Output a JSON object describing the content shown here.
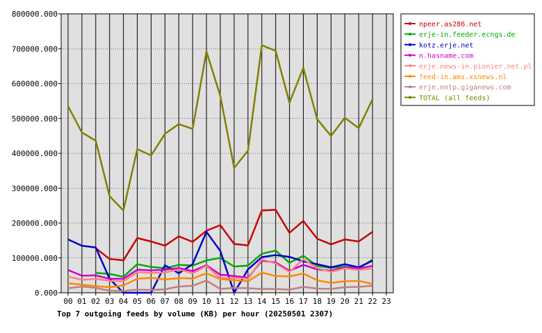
{
  "chart_data": {
    "type": "line",
    "title": "Top 7 outgoing feeds by volume (KB) per hour (20250501 2307)",
    "x_categories": [
      "00",
      "01",
      "02",
      "03",
      "04",
      "05",
      "06",
      "07",
      "08",
      "09",
      "10",
      "11",
      "12",
      "13",
      "14",
      "15",
      "16",
      "17",
      "18",
      "19",
      "20",
      "21",
      "22",
      "23"
    ],
    "ylim": [
      0,
      800000
    ],
    "y_ticks": [
      0,
      100000,
      200000,
      300000,
      400000,
      500000,
      600000,
      700000,
      800000
    ],
    "y_tick_labels": [
      "0.000",
      "100000.000",
      "200000.000",
      "300000.000",
      "400000.000",
      "500000.000",
      "600000.000",
      "700000.000",
      "800000.000"
    ],
    "grid": true,
    "legend_position": "right",
    "series": [
      {
        "name": "npeer.as286.net",
        "color": "#cc0000",
        "values": [
          null,
          null,
          128000,
          97000,
          93000,
          157000,
          147000,
          135000,
          162000,
          146000,
          178000,
          194000,
          140000,
          136000,
          236000,
          238000,
          172000,
          206000,
          155000,
          139000,
          153000,
          147000,
          175000,
          null
        ]
      },
      {
        "name": "erje-in.feeder.ecngs.de",
        "color": "#00aa00",
        "values": [
          null,
          null,
          57000,
          54000,
          46000,
          82000,
          74000,
          70000,
          80000,
          78000,
          93000,
          100000,
          75000,
          78000,
          112000,
          121000,
          86000,
          106000,
          77000,
          71000,
          75000,
          70000,
          95000,
          null
        ]
      },
      {
        "name": "kotz.erje.net",
        "color": "#0000cc",
        "values": [
          153000,
          135000,
          130000,
          40000,
          0,
          0,
          0,
          79000,
          56000,
          82000,
          175000,
          120000,
          0,
          67000,
          102000,
          108000,
          103000,
          90000,
          82000,
          73000,
          82000,
          73000,
          92000,
          null
        ]
      },
      {
        "name": "n.hasname.com",
        "color": "#cc00cc",
        "values": [
          65000,
          49000,
          50000,
          40000,
          40000,
          66000,
          64000,
          66000,
          71000,
          62000,
          79000,
          52000,
          48000,
          43000,
          92000,
          87000,
          63000,
          80000,
          67000,
          63000,
          73000,
          70000,
          77000,
          null
        ]
      },
      {
        "name": "erje.news-in.pionier.net.pl",
        "color": "#ff8080",
        "values": [
          47000,
          37000,
          40000,
          34000,
          33000,
          59000,
          57000,
          58000,
          67000,
          56000,
          77000,
          42000,
          43000,
          40000,
          96000,
          84000,
          60000,
          96000,
          71000,
          60000,
          70000,
          65000,
          70000,
          null
        ]
      },
      {
        "name": "feed-in.ams.xsnews.nl",
        "color": "#ff8800",
        "values": [
          27000,
          23000,
          19000,
          16000,
          21000,
          40000,
          43000,
          38000,
          42000,
          41000,
          56000,
          39000,
          36000,
          33000,
          58000,
          48000,
          47000,
          55000,
          36000,
          28000,
          33000,
          34000,
          25000,
          null
        ]
      },
      {
        "name": "erje.nntp.giganews.com",
        "color": "#c08080",
        "values": [
          13000,
          18000,
          14000,
          6000,
          5000,
          9000,
          8000,
          10000,
          18000,
          20000,
          35000,
          11000,
          14000,
          13000,
          11000,
          11000,
          9000,
          17000,
          12000,
          11000,
          16000,
          17000,
          20000,
          null
        ]
      },
      {
        "name": "TOTAL (all feeds)",
        "color": "#808000",
        "values": [
          535000,
          460000,
          436000,
          277000,
          236000,
          412000,
          394000,
          456000,
          484000,
          470000,
          692000,
          565000,
          358000,
          408000,
          710000,
          694000,
          545000,
          645000,
          498000,
          450000,
          502000,
          472000,
          555000,
          null
        ]
      }
    ]
  }
}
